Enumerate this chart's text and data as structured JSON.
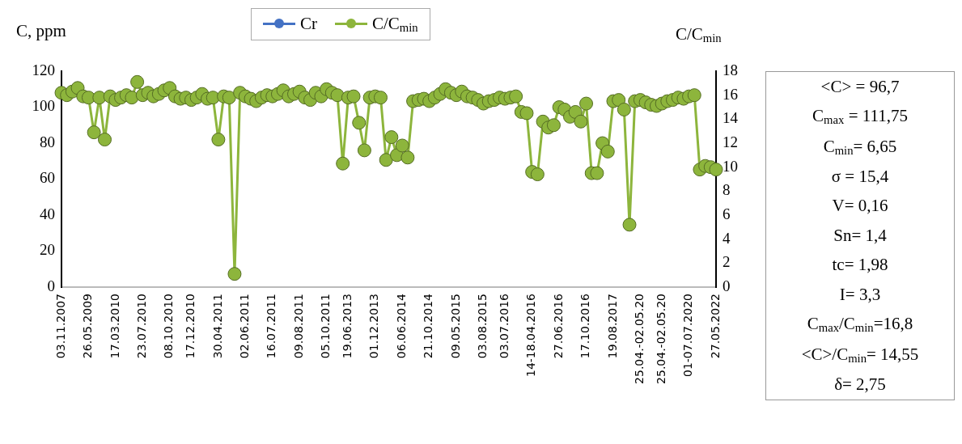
{
  "chart_data": {
    "type": "line",
    "ylabel": "C, ppm",
    "y2label": "C/C$_{min}$",
    "categories": [
      "03.11.2007",
      null,
      null,
      null,
      null,
      "26.05.2009",
      null,
      null,
      null,
      null,
      "17.03.2010",
      null,
      null,
      null,
      null,
      "23.07.2010",
      null,
      null,
      null,
      null,
      "08.10.2010",
      null,
      null,
      null,
      "17.12.2010",
      null,
      null,
      null,
      null,
      "30.04.2011",
      null,
      null,
      null,
      null,
      "02.06.2011",
      null,
      null,
      null,
      null,
      "16.07.2011",
      null,
      null,
      null,
      null,
      "09.08.2011",
      null,
      null,
      null,
      null,
      "05.10.2011",
      null,
      null,
      null,
      "19.06.2013",
      null,
      null,
      null,
      null,
      "01.12.2013",
      null,
      null,
      null,
      null,
      "06.06.2014",
      null,
      null,
      null,
      null,
      "21.10.2014",
      null,
      null,
      null,
      null,
      "09.05.2015",
      null,
      null,
      null,
      null,
      "03.08.2015",
      null,
      null,
      null,
      "03.07.2016",
      null,
      null,
      null,
      null,
      "14-18.04.2016",
      null,
      null,
      null,
      null,
      "27.06.2016",
      null,
      null,
      null,
      null,
      "17.10.2016",
      null,
      null,
      null,
      null,
      "19.08.2017",
      null,
      null,
      null,
      null,
      "25.04.-02.05.20",
      null,
      null,
      null,
      "25.04.-02.05.20",
      null,
      null,
      null,
      null,
      "01-07.07.2020",
      null,
      null,
      null,
      null,
      "27.05.2022"
    ],
    "series": [
      {
        "name": "Cr",
        "color": "#4472c4",
        "axis": "y",
        "values": [
          null,
          null,
          null,
          null,
          null,
          null,
          null,
          null,
          null,
          null,
          null,
          null,
          null,
          null,
          null,
          null,
          null,
          null,
          null,
          null,
          null,
          null,
          null,
          null,
          null,
          null,
          null,
          null,
          null,
          null,
          null,
          null,
          null,
          null,
          null,
          null,
          null,
          null,
          null,
          null,
          null,
          null,
          null,
          null,
          null,
          null,
          null,
          null,
          null,
          null,
          null,
          null,
          null,
          null,
          null,
          null,
          null,
          null,
          null,
          null,
          null,
          null,
          null,
          null,
          null,
          null,
          null,
          null,
          null,
          null,
          null,
          null,
          null,
          null,
          null,
          null,
          null,
          null,
          null,
          null,
          null,
          null,
          null,
          null,
          null,
          null,
          null,
          null,
          null,
          null,
          null,
          null,
          null,
          null,
          null,
          null,
          null,
          null,
          null,
          null,
          null,
          null,
          null,
          null,
          null,
          null,
          null,
          null,
          null,
          null,
          null,
          null,
          null,
          null,
          null,
          null,
          null,
          null,
          null,
          null,
          null,
          null
        ]
      },
      {
        "name": "C/C$_{min}$",
        "color": "#8db53c",
        "axis": "y2",
        "values": [
          16.2,
          16.0,
          16.3,
          16.6,
          15.9,
          15.8,
          12.9,
          15.8,
          12.3,
          15.9,
          15.6,
          15.8,
          16.0,
          15.8,
          17.1,
          16.0,
          16.2,
          15.9,
          16.1,
          16.4,
          16.6,
          15.9,
          15.7,
          15.8,
          15.6,
          15.8,
          16.1,
          15.7,
          15.8,
          12.3,
          15.9,
          15.8,
          1.1,
          16.2,
          15.9,
          15.7,
          15.5,
          15.8,
          16.0,
          15.9,
          16.1,
          16.4,
          15.9,
          16.1,
          16.3,
          15.8,
          15.6,
          16.2,
          15.9,
          16.5,
          16.2,
          16.0,
          10.3,
          15.8,
          15.9,
          13.7,
          11.4,
          15.8,
          15.9,
          15.8,
          10.6,
          12.5,
          11.0,
          11.8,
          10.8,
          15.5,
          15.6,
          15.7,
          15.5,
          15.8,
          16.1,
          16.5,
          16.2,
          16.0,
          16.3,
          15.9,
          15.8,
          15.6,
          15.3,
          15.5,
          15.6,
          15.8,
          15.7,
          15.8,
          15.9,
          14.6,
          14.5,
          9.6,
          9.4,
          13.8,
          13.3,
          13.5,
          15.0,
          14.8,
          14.2,
          14.6,
          13.8,
          15.3,
          9.5,
          9.5,
          12.0,
          11.3,
          15.5,
          15.6,
          14.8,
          5.2,
          15.5,
          15.6,
          15.4,
          15.2,
          15.1,
          15.3,
          15.5,
          15.6,
          15.8,
          15.7,
          15.9,
          16.0,
          9.8,
          10.1,
          10.0,
          9.8
        ]
      }
    ],
    "ylim": [
      0,
      120
    ],
    "yticks": [
      0,
      20,
      40,
      60,
      80,
      100,
      120
    ],
    "y2lim": [
      0,
      18
    ],
    "y2ticks": [
      0,
      2,
      4,
      6,
      8,
      10,
      12,
      14,
      16,
      18
    ],
    "marker": "circle",
    "legend": "top",
    "grid": false,
    "annotations": [
      "<C> = 96,7",
      "C$_{max}$ = 111,75",
      "C$_{min}$= 6,65",
      "σ = 15,4",
      "V= 0,16",
      "Sn= 1,4",
      "tc= 1,98",
      "I= 3,3",
      "C$_{max}$/C$_{min}$=16,8",
      "<C>/C$_{min}$= 14,55",
      "δ= 2,75"
    ]
  }
}
